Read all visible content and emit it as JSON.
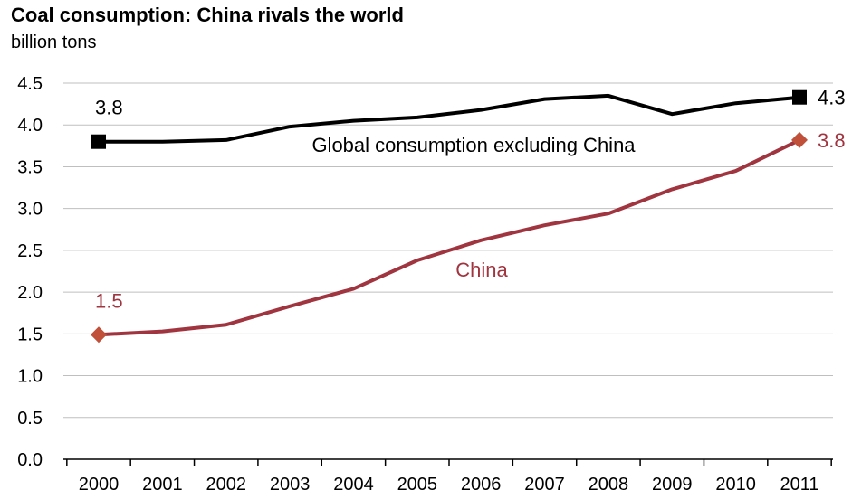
{
  "colors": {
    "global_line": "#000000",
    "china_line": "#a0343f",
    "china_marker": "#c0503a",
    "china_label": "#a0343f",
    "grid": "#bfbfbf"
  },
  "chart_data": {
    "type": "line",
    "title": "Coal consumption: China rivals the world",
    "subtitle": "billion tons",
    "xlabel": "",
    "ylabel": "",
    "x": [
      "2000",
      "2001",
      "2002",
      "2003",
      "2004",
      "2005",
      "2006",
      "2007",
      "2008",
      "2009",
      "2010",
      "2011"
    ],
    "ylim": [
      0,
      4.5
    ],
    "yticks": [
      "0.0",
      "0.5",
      "1.0",
      "1.5",
      "2.0",
      "2.5",
      "3.0",
      "3.5",
      "4.0",
      "4.5"
    ],
    "grid": true,
    "legend": "none",
    "series": [
      {
        "name": "Global consumption excluding China",
        "values": [
          3.8,
          3.8,
          3.82,
          3.98,
          4.05,
          4.09,
          4.18,
          4.31,
          4.35,
          4.13,
          4.26,
          4.33
        ],
        "start_label": "3.8",
        "end_label": "4.3",
        "marker": "square"
      },
      {
        "name": "China",
        "values": [
          1.49,
          1.53,
          1.61,
          1.83,
          2.04,
          2.38,
          2.62,
          2.8,
          2.94,
          3.23,
          3.45,
          3.82
        ],
        "start_label": "1.5",
        "end_label": "3.8",
        "marker": "diamond"
      }
    ]
  }
}
